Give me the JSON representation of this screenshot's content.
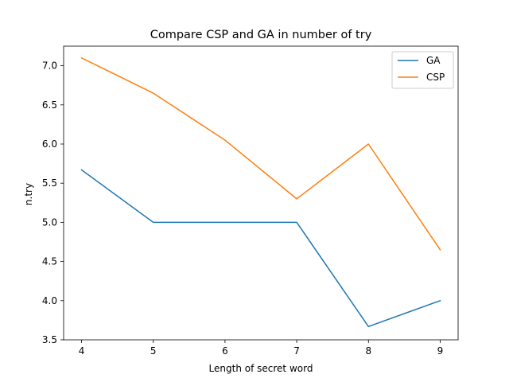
{
  "chart_data": {
    "type": "line",
    "title": "Compare CSP and GA in number of try",
    "xlabel": "Length of secret word",
    "ylabel": "n.try",
    "x": [
      4,
      5,
      6,
      7,
      8,
      9
    ],
    "xlim": [
      3.75,
      9.25
    ],
    "ylim": [
      3.5,
      7.25
    ],
    "xticks": [
      4,
      5,
      6,
      7,
      8,
      9
    ],
    "yticks": [
      3.5,
      4.0,
      4.5,
      5.0,
      5.5,
      6.0,
      6.5,
      7.0
    ],
    "ytick_labels": [
      "3.5",
      "4.0",
      "4.5",
      "5.0",
      "5.5",
      "6.0",
      "6.5",
      "7.0"
    ],
    "grid": false,
    "legend_position": "top-right",
    "series": [
      {
        "name": "GA",
        "color": "#1f77b4",
        "values": [
          5.67,
          5.0,
          5.0,
          5.0,
          3.67,
          4.0
        ]
      },
      {
        "name": "CSP",
        "color": "#ff7f0e",
        "values": [
          7.1,
          6.65,
          6.05,
          5.3,
          6.0,
          4.65
        ]
      }
    ]
  }
}
